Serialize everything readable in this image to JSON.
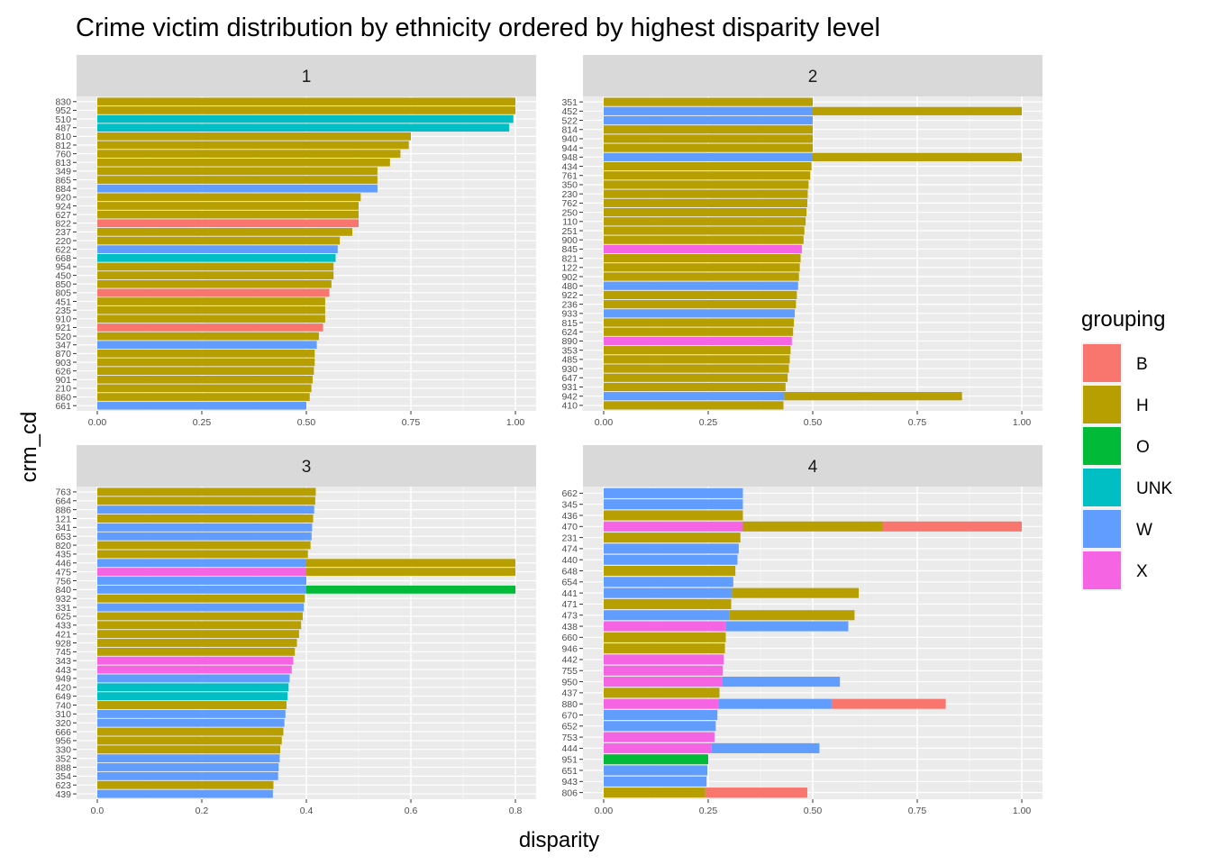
{
  "colors": {
    "B": "#F8766D",
    "H": "#B79F00",
    "O": "#00BA38",
    "UNK": "#00BFC4",
    "W": "#619CFF",
    "X": "#F564E3"
  },
  "chart_data": {
    "type": "bar",
    "orientation": "horizontal",
    "stacked": true,
    "title": "Crime victim distribution by ethnicity ordered by highest disparity level",
    "xlabel": "disparity",
    "ylabel": "crm_cd",
    "legend": {
      "title": "grouping",
      "position": "right",
      "entries": [
        "B",
        "H",
        "O",
        "UNK",
        "W",
        "X"
      ]
    },
    "facets": [
      {
        "label": "1",
        "xlim": [
          0,
          1
        ],
        "xticks": [
          0,
          0.25,
          0.5,
          0.75,
          1
        ],
        "xtick_labels": [
          "0.00",
          "0.25",
          "0.50",
          "0.75",
          "1.00"
        ],
        "categories": [
          "830",
          "952",
          "510",
          "487",
          "810",
          "812",
          "760",
          "813",
          "349",
          "865",
          "884",
          "920",
          "924",
          "627",
          "822",
          "237",
          "220",
          "622",
          "668",
          "954",
          "450",
          "850",
          "805",
          "451",
          "235",
          "910",
          "921",
          "520",
          "347",
          "870",
          "903",
          "626",
          "901",
          "210",
          "860",
          "661"
        ],
        "bars": [
          [
            [
              "H",
              1.0
            ]
          ],
          [
            [
              "H",
              1.0
            ]
          ],
          [
            [
              "UNK",
              0.995
            ]
          ],
          [
            [
              "UNK",
              0.985
            ]
          ],
          [
            [
              "H",
              0.75
            ]
          ],
          [
            [
              "H",
              0.745
            ]
          ],
          [
            [
              "H",
              0.725
            ]
          ],
          [
            [
              "H",
              0.7
            ]
          ],
          [
            [
              "H",
              0.67
            ]
          ],
          [
            [
              "H",
              0.67
            ]
          ],
          [
            [
              "W",
              0.67
            ]
          ],
          [
            [
              "H",
              0.63
            ]
          ],
          [
            [
              "H",
              0.625
            ]
          ],
          [
            [
              "H",
              0.625
            ]
          ],
          [
            [
              "B",
              0.625
            ]
          ],
          [
            [
              "H",
              0.61
            ]
          ],
          [
            [
              "H",
              0.58
            ]
          ],
          [
            [
              "W",
              0.575
            ]
          ],
          [
            [
              "UNK",
              0.57
            ]
          ],
          [
            [
              "H",
              0.565
            ]
          ],
          [
            [
              "H",
              0.565
            ]
          ],
          [
            [
              "H",
              0.56
            ]
          ],
          [
            [
              "B",
              0.555
            ]
          ],
          [
            [
              "H",
              0.545
            ]
          ],
          [
            [
              "H",
              0.545
            ]
          ],
          [
            [
              "H",
              0.545
            ]
          ],
          [
            [
              "B",
              0.54
            ]
          ],
          [
            [
              "H",
              0.53
            ]
          ],
          [
            [
              "W",
              0.525
            ]
          ],
          [
            [
              "H",
              0.52
            ]
          ],
          [
            [
              "H",
              0.52
            ]
          ],
          [
            [
              "H",
              0.518
            ]
          ],
          [
            [
              "H",
              0.515
            ]
          ],
          [
            [
              "H",
              0.512
            ]
          ],
          [
            [
              "H",
              0.508
            ]
          ],
          [
            [
              "W",
              0.5
            ]
          ]
        ]
      },
      {
        "label": "2",
        "xlim": [
          0,
          1
        ],
        "xticks": [
          0,
          0.25,
          0.5,
          0.75,
          1
        ],
        "xtick_labels": [
          "0.00",
          "0.25",
          "0.50",
          "0.75",
          "1.00"
        ],
        "categories": [
          "351",
          "452",
          "522",
          "814",
          "940",
          "944",
          "948",
          "434",
          "761",
          "350",
          "230",
          "762",
          "250",
          "110",
          "251",
          "900",
          "845",
          "821",
          "122",
          "902",
          "480",
          "922",
          "236",
          "933",
          "815",
          "624",
          "890",
          "353",
          "485",
          "930",
          "647",
          "931",
          "942",
          "410"
        ],
        "bars": [
          [
            [
              "H",
              0.5
            ]
          ],
          [
            [
              "W",
              0.5
            ],
            [
              "H",
              1.0
            ]
          ],
          [
            [
              "W",
              0.5
            ]
          ],
          [
            [
              "H",
              0.5
            ]
          ],
          [
            [
              "H",
              0.5
            ]
          ],
          [
            [
              "H",
              0.5
            ]
          ],
          [
            [
              "W",
              0.5
            ],
            [
              "H",
              1.0
            ]
          ],
          [
            [
              "H",
              0.497
            ]
          ],
          [
            [
              "H",
              0.494
            ]
          ],
          [
            [
              "H",
              0.49
            ]
          ],
          [
            [
              "H",
              0.488
            ]
          ],
          [
            [
              "H",
              0.487
            ]
          ],
          [
            [
              "H",
              0.485
            ]
          ],
          [
            [
              "H",
              0.483
            ]
          ],
          [
            [
              "H",
              0.48
            ]
          ],
          [
            [
              "H",
              0.478
            ]
          ],
          [
            [
              "X",
              0.474
            ]
          ],
          [
            [
              "H",
              0.471
            ]
          ],
          [
            [
              "H",
              0.469
            ]
          ],
          [
            [
              "H",
              0.467
            ]
          ],
          [
            [
              "W",
              0.465
            ]
          ],
          [
            [
              "H",
              0.462
            ]
          ],
          [
            [
              "H",
              0.46
            ]
          ],
          [
            [
              "W",
              0.457
            ]
          ],
          [
            [
              "H",
              0.455
            ]
          ],
          [
            [
              "H",
              0.453
            ]
          ],
          [
            [
              "X",
              0.45
            ]
          ],
          [
            [
              "H",
              0.447
            ]
          ],
          [
            [
              "H",
              0.445
            ]
          ],
          [
            [
              "H",
              0.443
            ]
          ],
          [
            [
              "H",
              0.44
            ]
          ],
          [
            [
              "H",
              0.435
            ]
          ],
          [
            [
              "W",
              0.432
            ],
            [
              "H",
              0.857
            ]
          ],
          [
            [
              "H",
              0.43
            ]
          ]
        ]
      },
      {
        "label": "3",
        "xlim": [
          0,
          0.8
        ],
        "xticks": [
          0,
          0.2,
          0.4,
          0.6,
          0.8
        ],
        "xtick_labels": [
          "0.0",
          "0.2",
          "0.4",
          "0.6",
          "0.8"
        ],
        "categories": [
          "763",
          "664",
          "886",
          "121",
          "341",
          "653",
          "820",
          "435",
          "446",
          "475",
          "756",
          "840",
          "932",
          "331",
          "625",
          "433",
          "421",
          "928",
          "745",
          "343",
          "443",
          "949",
          "420",
          "649",
          "740",
          "310",
          "320",
          "666",
          "956",
          "330",
          "352",
          "888",
          "354",
          "623",
          "439"
        ],
        "bars": [
          [
            [
              "H",
              0.418
            ]
          ],
          [
            [
              "H",
              0.417
            ]
          ],
          [
            [
              "W",
              0.415
            ]
          ],
          [
            [
              "H",
              0.413
            ]
          ],
          [
            [
              "W",
              0.411
            ]
          ],
          [
            [
              "W",
              0.41
            ]
          ],
          [
            [
              "H",
              0.408
            ]
          ],
          [
            [
              "H",
              0.403
            ]
          ],
          [
            [
              "W",
              0.4
            ],
            [
              "H",
              0.8
            ]
          ],
          [
            [
              "X",
              0.4
            ],
            [
              "H",
              0.8
            ]
          ],
          [
            [
              "W",
              0.4
            ]
          ],
          [
            [
              "W",
              0.4
            ],
            [
              "O",
              0.8
            ]
          ],
          [
            [
              "H",
              0.397
            ]
          ],
          [
            [
              "W",
              0.395
            ]
          ],
          [
            [
              "H",
              0.393
            ]
          ],
          [
            [
              "H",
              0.39
            ]
          ],
          [
            [
              "H",
              0.386
            ]
          ],
          [
            [
              "H",
              0.382
            ]
          ],
          [
            [
              "H",
              0.378
            ]
          ],
          [
            [
              "X",
              0.375
            ]
          ],
          [
            [
              "X",
              0.372
            ]
          ],
          [
            [
              "W",
              0.368
            ]
          ],
          [
            [
              "UNK",
              0.366
            ]
          ],
          [
            [
              "UNK",
              0.364
            ]
          ],
          [
            [
              "H",
              0.362
            ]
          ],
          [
            [
              "W",
              0.36
            ]
          ],
          [
            [
              "W",
              0.358
            ]
          ],
          [
            [
              "H",
              0.356
            ]
          ],
          [
            [
              "H",
              0.353
            ]
          ],
          [
            [
              "H",
              0.35
            ]
          ],
          [
            [
              "W",
              0.349
            ]
          ],
          [
            [
              "W",
              0.347
            ]
          ],
          [
            [
              "W",
              0.346
            ]
          ],
          [
            [
              "H",
              0.337
            ]
          ],
          [
            [
              "W",
              0.336
            ]
          ]
        ]
      },
      {
        "label": "4",
        "xlim": [
          0,
          1
        ],
        "xticks": [
          0,
          0.25,
          0.5,
          0.75,
          1
        ],
        "xtick_labels": [
          "0.00",
          "0.25",
          "0.50",
          "0.75",
          "1.00"
        ],
        "categories": [
          "662",
          "345",
          "436",
          "470",
          "231",
          "474",
          "440",
          "648",
          "654",
          "441",
          "471",
          "473",
          "438",
          "660",
          "946",
          "442",
          "755",
          "950",
          "437",
          "880",
          "670",
          "652",
          "753",
          "444",
          "951",
          "651",
          "943",
          "806"
        ],
        "bars": [
          [
            [
              "W",
              0.333
            ]
          ],
          [
            [
              "W",
              0.333
            ]
          ],
          [
            [
              "H",
              0.333
            ]
          ],
          [
            [
              "X",
              0.333
            ],
            [
              "H",
              0.667
            ],
            [
              "B",
              1.0
            ]
          ],
          [
            [
              "H",
              0.327
            ]
          ],
          [
            [
              "W",
              0.323
            ]
          ],
          [
            [
              "W",
              0.32
            ]
          ],
          [
            [
              "H",
              0.315
            ]
          ],
          [
            [
              "W",
              0.31
            ]
          ],
          [
            [
              "W",
              0.307
            ],
            [
              "H",
              0.61
            ]
          ],
          [
            [
              "H",
              0.305
            ]
          ],
          [
            [
              "W",
              0.3
            ],
            [
              "H",
              0.6
            ]
          ],
          [
            [
              "X",
              0.293
            ],
            [
              "W",
              0.585
            ]
          ],
          [
            [
              "H",
              0.292
            ]
          ],
          [
            [
              "H",
              0.29
            ]
          ],
          [
            [
              "X",
              0.287
            ]
          ],
          [
            [
              "X",
              0.285
            ]
          ],
          [
            [
              "X",
              0.283
            ],
            [
              "W",
              0.565
            ]
          ],
          [
            [
              "H",
              0.277
            ]
          ],
          [
            [
              "X",
              0.275
            ],
            [
              "W",
              0.545
            ],
            [
              "B",
              0.818
            ]
          ],
          [
            [
              "W",
              0.272
            ]
          ],
          [
            [
              "W",
              0.268
            ]
          ],
          [
            [
              "X",
              0.265
            ]
          ],
          [
            [
              "X",
              0.258
            ],
            [
              "W",
              0.516
            ]
          ],
          [
            [
              "O",
              0.25
            ]
          ],
          [
            [
              "W",
              0.248
            ]
          ],
          [
            [
              "W",
              0.246
            ]
          ],
          [
            [
              "H",
              0.243
            ],
            [
              "B",
              0.487
            ]
          ]
        ]
      }
    ]
  }
}
